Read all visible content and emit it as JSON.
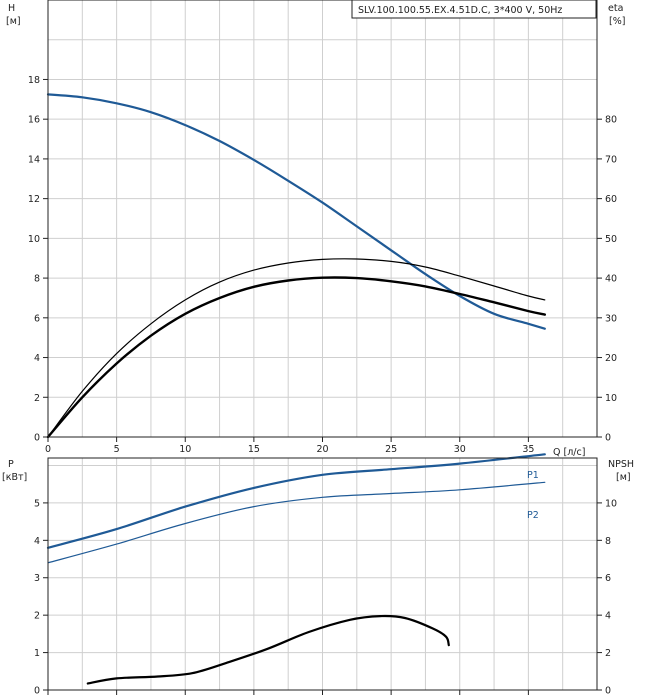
{
  "chart_data": [
    {
      "type": "line",
      "title": "SLV.100.100.55.EX.4.51D.C, 3*400 V, 50Hz",
      "xlabel": "Q [л/с]",
      "ylabel_left_name": "H",
      "ylabel_left_unit": "[м]",
      "ylabel_right_name": "eta",
      "ylabel_right_unit": "[%]",
      "xlim": [
        0,
        40
      ],
      "ylim_left": [
        0,
        22
      ],
      "ylim_right": [
        0,
        110
      ],
      "x_ticks": [
        0,
        5,
        10,
        15,
        20,
        25,
        30,
        35
      ],
      "y_ticks_left": [
        0,
        2,
        4,
        6,
        8,
        10,
        12,
        14,
        16,
        18
      ],
      "y_ticks_right": [
        0,
        10,
        20,
        30,
        40,
        50,
        60,
        70,
        80
      ],
      "grid": true,
      "series": [
        {
          "axis": "left",
          "color": "#1f5a96",
          "width": 2.2,
          "points": [
            [
              0,
              17.25
            ],
            [
              2.5,
              17.1
            ],
            [
              5,
              16.8
            ],
            [
              7.5,
              16.35
            ],
            [
              10,
              15.7
            ],
            [
              12.5,
              14.9
            ],
            [
              15,
              13.95
            ],
            [
              17.5,
              12.9
            ],
            [
              20,
              11.8
            ],
            [
              22.5,
              10.6
            ],
            [
              25,
              9.4
            ],
            [
              27.5,
              8.2
            ],
            [
              30,
              7.1
            ],
            [
              32.5,
              6.2
            ],
            [
              35,
              5.7
            ],
            [
              36.2,
              5.45
            ]
          ]
        },
        {
          "axis": "right",
          "color": "#000000",
          "width": 1.2,
          "points": [
            [
              0,
              0
            ],
            [
              2.5,
              11.5
            ],
            [
              5,
              21
            ],
            [
              7.5,
              28.5
            ],
            [
              10,
              34.5
            ],
            [
              12.5,
              39
            ],
            [
              15,
              42
            ],
            [
              17.5,
              43.8
            ],
            [
              20,
              44.7
            ],
            [
              22.5,
              44.8
            ],
            [
              25,
              44.2
            ],
            [
              27.5,
              42.8
            ],
            [
              30,
              40.5
            ],
            [
              32.5,
              38
            ],
            [
              35,
              35.5
            ],
            [
              36.2,
              34.5
            ]
          ]
        },
        {
          "axis": "right",
          "color": "#000000",
          "width": 2.4,
          "points": [
            [
              0,
              0
            ],
            [
              2.5,
              10
            ],
            [
              5,
              18.5
            ],
            [
              7.5,
              25.5
            ],
            [
              10,
              31
            ],
            [
              12.5,
              35
            ],
            [
              15,
              37.8
            ],
            [
              17.5,
              39.4
            ],
            [
              20,
              40.1
            ],
            [
              22.5,
              40
            ],
            [
              25,
              39.2
            ],
            [
              27.5,
              37.9
            ],
            [
              30,
              36
            ],
            [
              32.5,
              33.9
            ],
            [
              35,
              31.7
            ],
            [
              36.2,
              30.8
            ]
          ]
        }
      ]
    },
    {
      "type": "line",
      "xlim": [
        0,
        40
      ],
      "ylabel_left_name": "P",
      "ylabel_left_unit": "[кВт]",
      "ylabel_right_name": "NPSH",
      "ylabel_right_unit": "[м]",
      "ylim_left": [
        0,
        6.2
      ],
      "ylim_right": [
        0,
        12.4
      ],
      "x_ticks": [
        0,
        5,
        10,
        15,
        20,
        25,
        30,
        35
      ],
      "y_ticks_left": [
        0,
        1,
        2,
        3,
        4,
        5
      ],
      "y_ticks_right": [
        0,
        2,
        4,
        6,
        8,
        10
      ],
      "grid": true,
      "series": [
        {
          "name": "P1",
          "axis": "left",
          "color": "#1f5a96",
          "width": 2.2,
          "points": [
            [
              0,
              3.8
            ],
            [
              5,
              4.3
            ],
            [
              10,
              4.9
            ],
            [
              15,
              5.4
            ],
            [
              20,
              5.75
            ],
            [
              25,
              5.9
            ],
            [
              30,
              6.05
            ],
            [
              36.2,
              6.3
            ]
          ]
        },
        {
          "name": "P2",
          "axis": "left",
          "color": "#1f5a96",
          "width": 1.2,
          "points": [
            [
              0,
              3.4
            ],
            [
              5,
              3.9
            ],
            [
              10,
              4.45
            ],
            [
              15,
              4.9
            ],
            [
              20,
              5.15
            ],
            [
              25,
              5.25
            ],
            [
              30,
              5.35
            ],
            [
              36.2,
              5.55
            ]
          ]
        },
        {
          "axis": "right",
          "color": "#000000",
          "width": 2.2,
          "points": [
            [
              2.9,
              0.35
            ],
            [
              5,
              0.62
            ],
            [
              8,
              0.72
            ],
            [
              10.5,
              0.9
            ],
            [
              13,
              1.45
            ],
            [
              16,
              2.2
            ],
            [
              19,
              3.1
            ],
            [
              22,
              3.75
            ],
            [
              24.2,
              3.95
            ],
            [
              26,
              3.85
            ],
            [
              28,
              3.3
            ],
            [
              29,
              2.85
            ],
            [
              29.2,
              2.4
            ]
          ]
        }
      ]
    }
  ]
}
